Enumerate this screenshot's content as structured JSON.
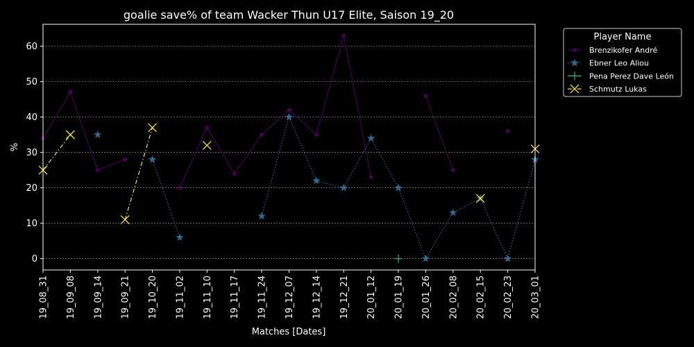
{
  "chart_data": {
    "type": "line",
    "title": "goalie save% of team Wacker Thun U17 Elite, Saison 19_20",
    "xlabel": "Matches [Dates]",
    "ylabel": "%",
    "ylim": [
      -3.2,
      66.2
    ],
    "yticks": [
      0,
      10,
      20,
      30,
      40,
      50,
      60
    ],
    "grid": "horizontal dotted",
    "legend_title": "Player Name",
    "legend_position": "outside top-right",
    "categories": [
      "19_08_31",
      "19_09_08",
      "19_09_14",
      "19_09_21",
      "19_10_20",
      "19_11_02",
      "19_11_10",
      "19_11_17",
      "19_11_24",
      "19_12_07",
      "19_12_14",
      "19_12_21",
      "20_01_12",
      "20_01_19",
      "20_01_26",
      "20_02_08",
      "20_02_15",
      "20_02_23",
      "20_03_01"
    ],
    "series": [
      {
        "name": "Brenzikofer André",
        "color": "#440154",
        "marker": "circle",
        "linestyle": "solid",
        "values": [
          34,
          47,
          25,
          28,
          null,
          20,
          37,
          24,
          35,
          42,
          35,
          63,
          23,
          null,
          46,
          25,
          null,
          36,
          null
        ]
      },
      {
        "name": "Ebner Leo Aliou",
        "color": "#31688e",
        "marker": "star",
        "linestyle": "dotted",
        "values": [
          null,
          null,
          35,
          null,
          28,
          6,
          null,
          null,
          12,
          40,
          22,
          20,
          34,
          20,
          0,
          13,
          17,
          0,
          28
        ]
      },
      {
        "name": "Pena Perez Dave León",
        "color": "#35b779",
        "marker": "plus",
        "linestyle": "dashed",
        "values": [
          null,
          null,
          null,
          null,
          null,
          null,
          null,
          null,
          null,
          null,
          null,
          null,
          null,
          0,
          null,
          null,
          null,
          null,
          null
        ]
      },
      {
        "name": "Schmutz Lukas",
        "color": "#fde725",
        "marker": "x",
        "linestyle": "dashdot",
        "values": [
          25,
          35,
          null,
          11,
          37,
          null,
          32,
          null,
          null,
          null,
          null,
          null,
          null,
          null,
          null,
          null,
          17,
          null,
          31
        ]
      }
    ]
  }
}
